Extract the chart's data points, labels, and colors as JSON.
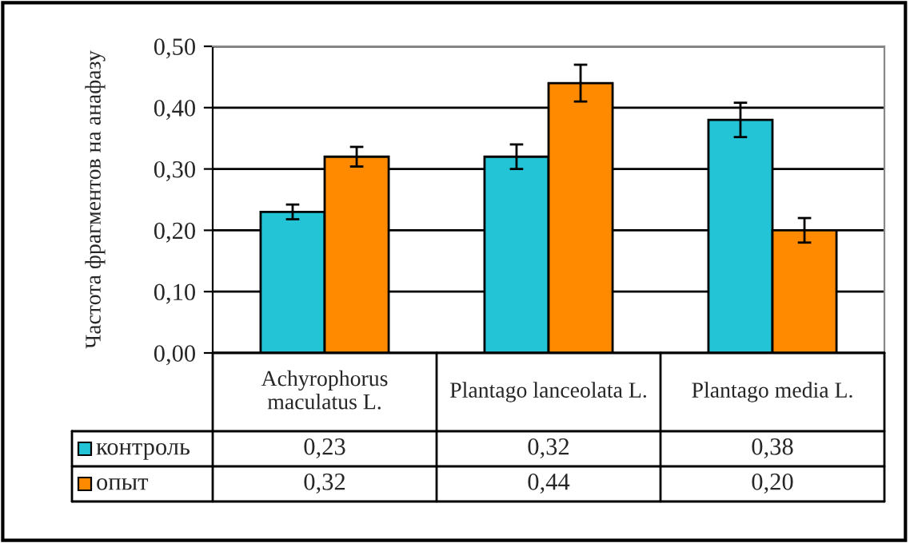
{
  "chart_data": {
    "type": "bar",
    "ylabel": "Частота фрагментов на анафазу",
    "categories": [
      "Achyrophorus maculatus L.",
      "Plantago lanceolata L.",
      "Plantago media L."
    ],
    "series": [
      {
        "name": "контроль",
        "color": "#22c4d6",
        "values": [
          0.23,
          0.32,
          0.38
        ],
        "value_labels": [
          "0,23",
          "0,32",
          "0,38"
        ],
        "errors": [
          0.012,
          0.02,
          0.028
        ]
      },
      {
        "name": "опыт",
        "color": "#ff8a00",
        "values": [
          0.32,
          0.44,
          0.2
        ],
        "value_labels": [
          "0,32",
          "0,44",
          "0,20"
        ],
        "errors": [
          0.016,
          0.03,
          0.02
        ]
      }
    ],
    "ylim": [
      0,
      0.5
    ],
    "yticks": [
      {
        "value": 0,
        "label": "0,00"
      },
      {
        "value": 0.1,
        "label": "0,10"
      },
      {
        "value": 0.2,
        "label": "0,20"
      },
      {
        "value": 0.3,
        "label": "0,30"
      },
      {
        "value": 0.4,
        "label": "0,40"
      },
      {
        "value": 0.5,
        "label": "0,50"
      }
    ],
    "grid": "y",
    "legend": "bottom"
  }
}
